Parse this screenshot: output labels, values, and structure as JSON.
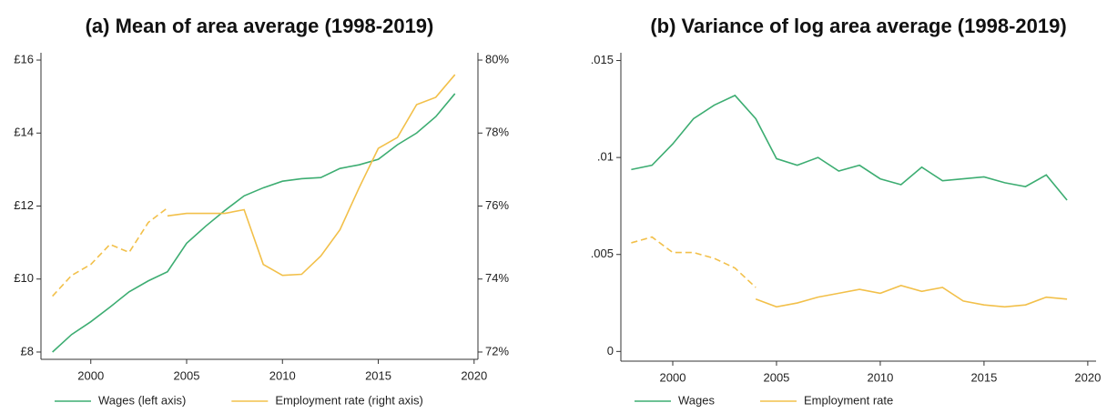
{
  "chart_data": [
    {
      "type": "line",
      "title": "(a) Mean of area average (1998-2019)",
      "x": [
        1998,
        1999,
        2000,
        2001,
        2002,
        2003,
        2004,
        2005,
        2006,
        2007,
        2008,
        2009,
        2010,
        2011,
        2012,
        2013,
        2014,
        2015,
        2016,
        2017,
        2018,
        2019
      ],
      "series": [
        {
          "name": "Wages (left axis)",
          "color": "#3dad72",
          "values": [
            8.0,
            8.48,
            8.83,
            9.23,
            9.65,
            9.95,
            10.2,
            10.98,
            11.45,
            11.88,
            12.28,
            12.5,
            12.68,
            12.75,
            12.78,
            13.03,
            13.13,
            13.28,
            13.68,
            14.0,
            14.45,
            15.08
          ]
        },
        {
          "name": "Employment rate (right axis)",
          "color": "#f2c04a",
          "axis": "y2",
          "values": [
            null,
            null,
            null,
            null,
            null,
            null,
            75.73,
            75.8,
            75.8,
            75.8,
            75.9,
            74.4,
            74.1,
            74.13,
            74.63,
            75.35,
            76.5,
            77.58,
            77.88,
            78.78,
            78.98,
            79.6
          ],
          "dashed_values": [
            73.53,
            74.1,
            74.4,
            74.95,
            74.73,
            75.55,
            75.95,
            null,
            null,
            null,
            null,
            null,
            null,
            null,
            null,
            null,
            null,
            null,
            null,
            null,
            null,
            null
          ]
        }
      ],
      "xlim": [
        1997.4,
        2020.2
      ],
      "xticks": [
        2000,
        2005,
        2010,
        2015,
        2020
      ],
      "ylim": [
        7.8,
        16.2
      ],
      "yticks": [
        {
          "value": 8,
          "label": "£8"
        },
        {
          "value": 10,
          "label": "£10"
        },
        {
          "value": 12,
          "label": "£12"
        },
        {
          "value": 14,
          "label": "£14"
        },
        {
          "value": 16,
          "label": "£16"
        }
      ],
      "y2lim": [
        71.8,
        80.2
      ],
      "y2ticks": [
        {
          "value": 72,
          "label": "72%"
        },
        {
          "value": 74,
          "label": "74%"
        },
        {
          "value": 76,
          "label": "76%"
        },
        {
          "value": 78,
          "label": "78%"
        },
        {
          "value": 80,
          "label": "80%"
        }
      ]
    },
    {
      "type": "line",
      "title": "(b) Variance of log area average (1998-2019)",
      "x": [
        1998,
        1999,
        2000,
        2001,
        2002,
        2003,
        2004,
        2005,
        2006,
        2007,
        2008,
        2009,
        2010,
        2011,
        2012,
        2013,
        2014,
        2015,
        2016,
        2017,
        2018,
        2019
      ],
      "series": [
        {
          "name": "Wages",
          "color": "#3dad72",
          "values": [
            0.00938,
            0.0096,
            0.0107,
            0.012,
            0.0127,
            0.0132,
            0.012,
            0.00994,
            0.0096,
            0.01,
            0.0093,
            0.0096,
            0.0089,
            0.0086,
            0.0095,
            0.0088,
            0.0089,
            0.009,
            0.0087,
            0.0085,
            0.0091,
            0.0078
          ]
        },
        {
          "name": "Employment rate",
          "color": "#f2c04a",
          "values": [
            null,
            null,
            null,
            null,
            null,
            null,
            0.0027,
            0.0023,
            0.0025,
            0.0028,
            0.003,
            0.0032,
            0.003,
            0.0034,
            0.0031,
            0.0033,
            0.0026,
            0.0024,
            0.0023,
            0.0024,
            0.0028,
            0.0027
          ],
          "dashed_values": [
            0.0056,
            0.0059,
            0.0051,
            0.0051,
            0.0048,
            0.0043,
            0.0033,
            null,
            null,
            null,
            null,
            null,
            null,
            null,
            null,
            null,
            null,
            null,
            null,
            null,
            null,
            null
          ]
        }
      ],
      "xlim": [
        1997.5,
        2020.4
      ],
      "xticks": [
        2000,
        2005,
        2010,
        2015,
        2020
      ],
      "ylim": [
        -0.0005,
        0.0154
      ],
      "yticks": [
        0,
        {
          "value": 0.005,
          "label": ".005"
        },
        {
          "value": 0.01,
          "label": ".01"
        },
        {
          "value": 0.015,
          "label": ".015"
        }
      ]
    }
  ]
}
